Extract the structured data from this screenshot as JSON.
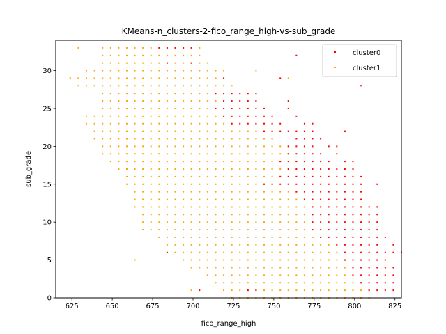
{
  "chart_data": {
    "type": "scatter",
    "title": "KMeans-n_clusters-2-fico_range_high-vs-sub_grade",
    "xlabel": "fico_range_high",
    "ylabel": "sub_grade",
    "xlim": [
      615,
      829
    ],
    "ylim": [
      0,
      34
    ],
    "xticks": [
      625,
      650,
      675,
      700,
      725,
      750,
      775,
      800,
      825
    ],
    "yticks": [
      0,
      5,
      10,
      15,
      20,
      25,
      30
    ],
    "grid": false,
    "legend_position": "top-right",
    "series": [
      {
        "name": "cluster0",
        "color": "#ff0000",
        "points": [
          [
            679,
            33
          ],
          [
            684,
            33
          ],
          [
            689,
            33
          ],
          [
            694,
            33
          ],
          [
            699,
            33
          ],
          [
            764,
            32
          ],
          [
            684,
            31
          ],
          [
            699,
            31
          ],
          [
            719,
            29
          ],
          [
            754,
            29
          ],
          [
            804,
            28
          ],
          [
            714,
            27
          ],
          [
            719,
            27
          ],
          [
            724,
            27
          ],
          [
            729,
            27
          ],
          [
            734,
            27
          ],
          [
            739,
            27
          ],
          [
            719,
            26
          ],
          [
            724,
            26
          ],
          [
            729,
            26
          ],
          [
            734,
            26
          ],
          [
            739,
            26
          ],
          [
            759,
            26
          ],
          [
            714,
            25
          ],
          [
            719,
            25
          ],
          [
            724,
            25
          ],
          [
            729,
            25
          ],
          [
            734,
            25
          ],
          [
            739,
            25
          ],
          [
            744,
            25
          ],
          [
            759,
            25
          ],
          [
            719,
            24
          ],
          [
            724,
            24
          ],
          [
            729,
            24
          ],
          [
            734,
            24
          ],
          [
            739,
            24
          ],
          [
            744,
            24
          ],
          [
            749,
            24
          ],
          [
            764,
            24
          ],
          [
            724,
            23
          ],
          [
            729,
            23
          ],
          [
            734,
            23
          ],
          [
            739,
            23
          ],
          [
            744,
            23
          ],
          [
            749,
            23
          ],
          [
            754,
            23
          ],
          [
            769,
            23
          ],
          [
            774,
            23
          ],
          [
            744,
            22
          ],
          [
            749,
            22
          ],
          [
            754,
            22
          ],
          [
            759,
            22
          ],
          [
            764,
            22
          ],
          [
            769,
            22
          ],
          [
            774,
            22
          ],
          [
            794,
            22
          ],
          [
            764,
            21
          ],
          [
            769,
            21
          ],
          [
            774,
            21
          ],
          [
            779,
            21
          ],
          [
            759,
            20
          ],
          [
            764,
            20
          ],
          [
            769,
            20
          ],
          [
            774,
            20
          ],
          [
            784,
            20
          ],
          [
            789,
            20
          ],
          [
            759,
            19
          ],
          [
            764,
            19
          ],
          [
            769,
            19
          ],
          [
            774,
            19
          ],
          [
            779,
            19
          ],
          [
            789,
            19
          ],
          [
            754,
            18
          ],
          [
            759,
            18
          ],
          [
            764,
            18
          ],
          [
            769,
            18
          ],
          [
            774,
            18
          ],
          [
            779,
            18
          ],
          [
            784,
            18
          ],
          [
            794,
            18
          ],
          [
            799,
            18
          ],
          [
            759,
            17
          ],
          [
            764,
            17
          ],
          [
            769,
            17
          ],
          [
            774,
            17
          ],
          [
            779,
            17
          ],
          [
            784,
            17
          ],
          [
            789,
            17
          ],
          [
            794,
            17
          ],
          [
            799,
            17
          ],
          [
            754,
            16
          ],
          [
            759,
            16
          ],
          [
            764,
            16
          ],
          [
            769,
            16
          ],
          [
            774,
            16
          ],
          [
            779,
            16
          ],
          [
            784,
            16
          ],
          [
            789,
            16
          ],
          [
            794,
            16
          ],
          [
            799,
            16
          ],
          [
            804,
            16
          ],
          [
            744,
            15
          ],
          [
            749,
            15
          ],
          [
            754,
            15
          ],
          [
            759,
            15
          ],
          [
            764,
            15
          ],
          [
            769,
            15
          ],
          [
            774,
            15
          ],
          [
            779,
            15
          ],
          [
            784,
            15
          ],
          [
            789,
            15
          ],
          [
            794,
            15
          ],
          [
            799,
            15
          ],
          [
            804,
            15
          ],
          [
            814,
            15
          ],
          [
            764,
            14
          ],
          [
            769,
            14
          ],
          [
            774,
            14
          ],
          [
            779,
            14
          ],
          [
            784,
            14
          ],
          [
            789,
            14
          ],
          [
            794,
            14
          ],
          [
            799,
            14
          ],
          [
            804,
            14
          ],
          [
            769,
            13
          ],
          [
            774,
            13
          ],
          [
            779,
            13
          ],
          [
            784,
            13
          ],
          [
            789,
            13
          ],
          [
            794,
            13
          ],
          [
            799,
            13
          ],
          [
            804,
            13
          ],
          [
            774,
            12
          ],
          [
            779,
            12
          ],
          [
            784,
            12
          ],
          [
            789,
            12
          ],
          [
            794,
            12
          ],
          [
            799,
            12
          ],
          [
            804,
            12
          ],
          [
            809,
            12
          ],
          [
            814,
            12
          ],
          [
            774,
            11
          ],
          [
            779,
            11
          ],
          [
            784,
            11
          ],
          [
            789,
            11
          ],
          [
            794,
            11
          ],
          [
            799,
            11
          ],
          [
            804,
            11
          ],
          [
            809,
            11
          ],
          [
            814,
            11
          ],
          [
            774,
            10
          ],
          [
            779,
            10
          ],
          [
            784,
            10
          ],
          [
            789,
            10
          ],
          [
            794,
            10
          ],
          [
            799,
            10
          ],
          [
            804,
            10
          ],
          [
            809,
            10
          ],
          [
            814,
            10
          ],
          [
            774,
            9
          ],
          [
            779,
            9
          ],
          [
            784,
            9
          ],
          [
            789,
            9
          ],
          [
            794,
            9
          ],
          [
            799,
            9
          ],
          [
            804,
            9
          ],
          [
            809,
            9
          ],
          [
            814,
            9
          ],
          [
            779,
            8
          ],
          [
            784,
            8
          ],
          [
            789,
            8
          ],
          [
            794,
            8
          ],
          [
            799,
            8
          ],
          [
            804,
            8
          ],
          [
            809,
            8
          ],
          [
            814,
            8
          ],
          [
            819,
            8
          ],
          [
            789,
            7
          ],
          [
            794,
            7
          ],
          [
            799,
            7
          ],
          [
            804,
            7
          ],
          [
            809,
            7
          ],
          [
            814,
            7
          ],
          [
            824,
            7
          ],
          [
            794,
            6
          ],
          [
            799,
            6
          ],
          [
            804,
            6
          ],
          [
            809,
            6
          ],
          [
            814,
            6
          ],
          [
            819,
            6
          ],
          [
            824,
            6
          ],
          [
            829,
            6
          ],
          [
            684,
            6
          ],
          [
            794,
            5
          ],
          [
            799,
            5
          ],
          [
            804,
            5
          ],
          [
            809,
            5
          ],
          [
            814,
            5
          ],
          [
            819,
            5
          ],
          [
            799,
            4
          ],
          [
            804,
            4
          ],
          [
            809,
            4
          ],
          [
            814,
            4
          ],
          [
            819,
            4
          ],
          [
            824,
            4
          ],
          [
            799,
            3
          ],
          [
            804,
            3
          ],
          [
            809,
            3
          ],
          [
            814,
            3
          ],
          [
            819,
            3
          ],
          [
            824,
            3
          ],
          [
            804,
            2
          ],
          [
            809,
            2
          ],
          [
            814,
            2
          ],
          [
            819,
            2
          ],
          [
            824,
            2
          ],
          [
            809,
            1
          ],
          [
            814,
            1
          ],
          [
            819,
            1
          ],
          [
            824,
            1
          ],
          [
            704,
            1
          ],
          [
            734,
            1
          ],
          [
            739,
            1
          ]
        ]
      },
      {
        "name": "cluster1",
        "color": "#ffa500",
        "generator": "grid",
        "note_range": "dense integer lattice of fico_range_high (step 5) vs sub_grade",
        "ranges": [
          [
            33,
            644,
            704
          ],
          [
            32,
            644,
            704
          ],
          [
            31,
            644,
            709
          ],
          [
            30,
            634,
            719
          ],
          [
            29,
            624,
            719
          ],
          [
            28,
            629,
            724
          ],
          [
            27,
            644,
            714
          ],
          [
            26,
            644,
            714
          ],
          [
            25,
            644,
            714
          ],
          [
            24,
            634,
            719
          ],
          [
            23,
            634,
            724
          ],
          [
            22,
            639,
            744
          ],
          [
            21,
            639,
            749
          ],
          [
            20,
            644,
            759
          ],
          [
            19,
            644,
            759
          ],
          [
            18,
            649,
            754
          ],
          [
            17,
            654,
            754
          ],
          [
            16,
            659,
            754
          ],
          [
            15,
            659,
            744
          ],
          [
            14,
            664,
            764
          ],
          [
            13,
            664,
            769
          ],
          [
            12,
            664,
            774
          ],
          [
            11,
            669,
            774
          ],
          [
            10,
            669,
            774
          ],
          [
            9,
            669,
            774
          ],
          [
            8,
            679,
            779
          ],
          [
            7,
            684,
            789
          ],
          [
            6,
            689,
            794
          ],
          [
            5,
            694,
            794
          ],
          [
            4,
            699,
            799
          ],
          [
            3,
            709,
            799
          ],
          [
            2,
            714,
            804
          ],
          [
            1,
            719,
            809
          ],
          [
            0,
            724,
            809
          ]
        ],
        "extra_points": [
          [
            624,
            29
          ],
          [
            629,
            33
          ],
          [
            664,
            5
          ],
          [
            739,
            30
          ],
          [
            759,
            29
          ],
          [
            699,
            1
          ]
        ]
      }
    ]
  }
}
